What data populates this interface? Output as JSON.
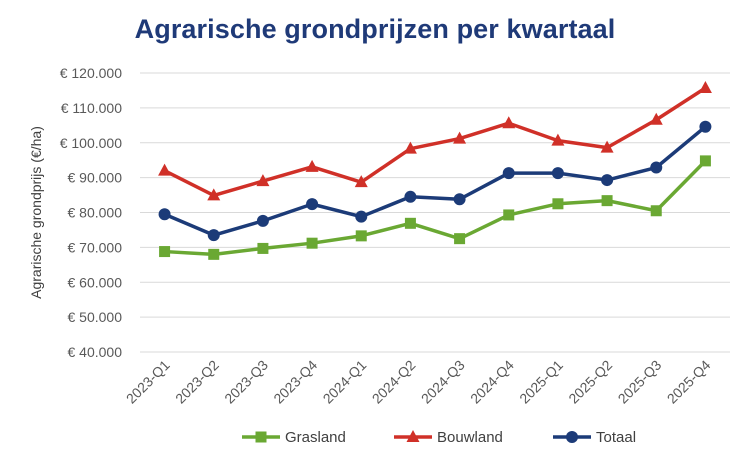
{
  "chart_data": {
    "type": "line",
    "title": "Agrarische grondprijzen per kwartaal",
    "ylabel": "Agrarische grondprijs (€/ha)",
    "xlabel": "",
    "ylim": [
      40000,
      120000
    ],
    "yticks": [
      40000,
      50000,
      60000,
      70000,
      80000,
      90000,
      100000,
      110000,
      120000
    ],
    "ytick_labels": [
      "€ 40.000",
      "€ 50.000",
      "€ 60.000",
      "€ 70.000",
      "€ 80.000",
      "€ 90.000",
      "€ 100.000",
      "€ 110.000",
      "€ 120.000"
    ],
    "grid": true,
    "legend_position": "bottom",
    "categories": [
      "2023-Q1",
      "2023-Q2",
      "2023-Q3",
      "2023-Q4",
      "2024-Q1",
      "2024-Q2",
      "2024-Q3",
      "2024-Q4",
      "2025-Q1",
      "2025-Q2",
      "2025-Q3",
      "2025-Q4"
    ],
    "series": [
      {
        "name": "Grasland",
        "color": "#6aa833",
        "marker": "square",
        "values": [
          68800,
          68000,
          69700,
          71200,
          73300,
          76900,
          72500,
          79300,
          82500,
          83400,
          80500,
          94800
        ]
      },
      {
        "name": "Bouwland",
        "color": "#d03028",
        "marker": "triangle",
        "values": [
          92000,
          84900,
          89000,
          93100,
          88700,
          98300,
          101200,
          105600,
          100600,
          98600,
          106600,
          115700
        ]
      },
      {
        "name": "Totaal",
        "color": "#1c3b78",
        "marker": "circle",
        "values": [
          79500,
          73500,
          77600,
          82400,
          78800,
          84500,
          83800,
          91300,
          91300,
          89300,
          92900,
          104600
        ]
      }
    ]
  }
}
